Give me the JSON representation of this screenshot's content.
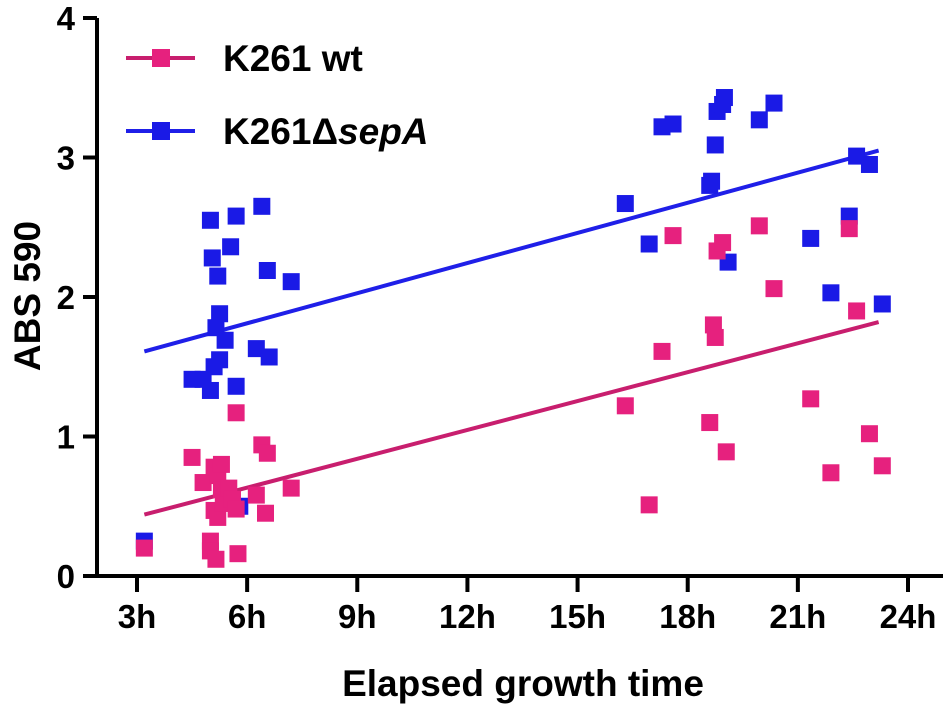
{
  "chart_data": {
    "type": "scatter",
    "xlabel": "Elapsed growth time",
    "ylabel": "ABS 590",
    "xlim": [
      2.0,
      25.0
    ],
    "ylim": [
      0,
      4
    ],
    "x_ticks": [
      3,
      6,
      9,
      12,
      15,
      18,
      21,
      24
    ],
    "x_tick_labels": [
      "3h",
      "6h",
      "9h",
      "12h",
      "15h",
      "18h",
      "21h",
      "24h"
    ],
    "y_ticks": [
      0,
      1,
      2,
      3,
      4
    ],
    "y_tick_labels": [
      "0",
      "1",
      "2",
      "3",
      "4"
    ],
    "legend_position": "top-left",
    "series": [
      {
        "name": "K261 wt",
        "name_main": "K261 wt",
        "name_italic": "",
        "color": "#e6217e",
        "line_color": "#c81e6e",
        "trend_line": [
          [
            3.2,
            0.44
          ],
          [
            23.2,
            1.82
          ]
        ],
        "points": [
          [
            3.2,
            0.2
          ],
          [
            4.5,
            0.85
          ],
          [
            4.8,
            0.67
          ],
          [
            5.0,
            0.25
          ],
          [
            5.0,
            0.18
          ],
          [
            5.1,
            0.78
          ],
          [
            5.1,
            0.47
          ],
          [
            5.15,
            0.12
          ],
          [
            5.2,
            0.42
          ],
          [
            5.2,
            0.72
          ],
          [
            5.3,
            0.62
          ],
          [
            5.3,
            0.8
          ],
          [
            5.35,
            0.52
          ],
          [
            5.5,
            0.63
          ],
          [
            5.6,
            0.55
          ],
          [
            5.7,
            0.48
          ],
          [
            5.7,
            1.17
          ],
          [
            5.75,
            0.16
          ],
          [
            6.25,
            0.58
          ],
          [
            6.4,
            0.94
          ],
          [
            6.5,
            0.45
          ],
          [
            6.55,
            0.88
          ],
          [
            7.2,
            0.63
          ],
          [
            16.3,
            1.22
          ],
          [
            16.95,
            0.51
          ],
          [
            17.3,
            1.61
          ],
          [
            17.6,
            2.44
          ],
          [
            18.6,
            1.1
          ],
          [
            18.7,
            1.8
          ],
          [
            18.75,
            1.71
          ],
          [
            18.8,
            2.33
          ],
          [
            18.95,
            2.39
          ],
          [
            19.05,
            0.89
          ],
          [
            19.95,
            2.51
          ],
          [
            20.35,
            2.06
          ],
          [
            21.35,
            1.27
          ],
          [
            21.9,
            0.74
          ],
          [
            22.4,
            2.49
          ],
          [
            22.6,
            1.9
          ],
          [
            22.95,
            1.02
          ],
          [
            23.3,
            0.79
          ]
        ]
      },
      {
        "name": "K261ΔsepA",
        "name_main": "K261Δ",
        "name_italic": "sepA",
        "color": "#1a1ae6",
        "line_color": "#1f1fe8",
        "trend_line": [
          [
            3.2,
            1.61
          ],
          [
            23.2,
            3.05
          ]
        ],
        "points": [
          [
            3.2,
            0.25
          ],
          [
            4.5,
            1.41
          ],
          [
            4.8,
            1.41
          ],
          [
            5.0,
            1.33
          ],
          [
            5.0,
            2.55
          ],
          [
            5.05,
            2.28
          ],
          [
            5.1,
            1.5
          ],
          [
            5.15,
            1.78
          ],
          [
            5.2,
            2.15
          ],
          [
            5.25,
            1.88
          ],
          [
            5.25,
            1.55
          ],
          [
            5.4,
            1.69
          ],
          [
            5.55,
            2.36
          ],
          [
            5.7,
            2.58
          ],
          [
            5.8,
            0.5
          ],
          [
            5.7,
            1.36
          ],
          [
            6.25,
            1.63
          ],
          [
            6.4,
            2.65
          ],
          [
            6.55,
            2.19
          ],
          [
            6.6,
            1.57
          ],
          [
            7.2,
            2.11
          ],
          [
            16.3,
            2.67
          ],
          [
            16.95,
            2.38
          ],
          [
            17.3,
            3.22
          ],
          [
            17.6,
            3.24
          ],
          [
            18.6,
            2.8
          ],
          [
            18.65,
            2.83
          ],
          [
            18.75,
            3.09
          ],
          [
            18.8,
            3.33
          ],
          [
            18.95,
            3.38
          ],
          [
            19.0,
            3.43
          ],
          [
            19.1,
            2.25
          ],
          [
            19.95,
            3.27
          ],
          [
            20.35,
            3.39
          ],
          [
            21.35,
            2.42
          ],
          [
            21.9,
            2.03
          ],
          [
            22.4,
            2.58
          ],
          [
            22.6,
            3.01
          ],
          [
            22.95,
            2.95
          ],
          [
            23.3,
            1.95
          ]
        ]
      }
    ]
  }
}
